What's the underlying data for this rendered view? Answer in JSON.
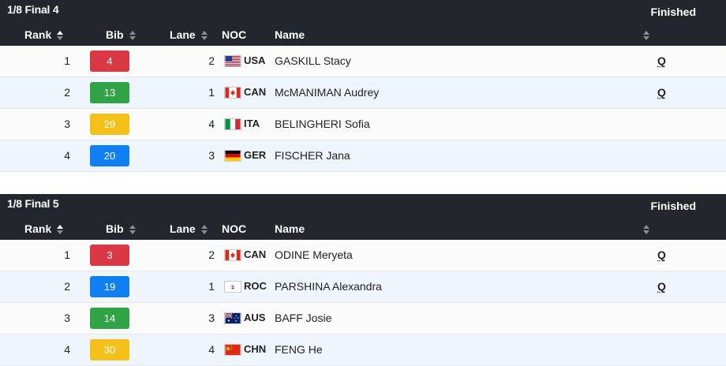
{
  "columns": {
    "rank": "Rank",
    "bib": "Bib",
    "lane": "Lane",
    "noc": "NOC",
    "name": "Name"
  },
  "colors": {
    "red": "#d93844",
    "green": "#2fa345",
    "yellow": "#f5c01a",
    "blue": "#0f7ff1",
    "header": "#24262d"
  },
  "heats": [
    {
      "title": "1/8 Final 4",
      "status": "Finished",
      "rows": [
        {
          "rank": "1",
          "bib": "4",
          "bib_color": "#d93844",
          "lane": "2",
          "flag": "usa-flag-icon",
          "noc": "USA",
          "name": "GASKILL Stacy",
          "q": "Q"
        },
        {
          "rank": "2",
          "bib": "13",
          "bib_color": "#2fa345",
          "lane": "1",
          "flag": "canada-flag-icon",
          "noc": "CAN",
          "name": "McMANIMAN Audrey",
          "q": "Q"
        },
        {
          "rank": "3",
          "bib": "29",
          "bib_color": "#f5c01a",
          "lane": "4",
          "flag": "italy-flag-icon",
          "noc": "ITA",
          "name": "BELINGHERI Sofia",
          "q": ""
        },
        {
          "rank": "4",
          "bib": "20",
          "bib_color": "#0f7ff1",
          "lane": "3",
          "flag": "germany-flag-icon",
          "noc": "GER",
          "name": "FISCHER Jana",
          "q": ""
        }
      ]
    },
    {
      "title": "1/8 Final 5",
      "status": "Finished",
      "rows": [
        {
          "rank": "1",
          "bib": "3",
          "bib_color": "#d93844",
          "lane": "2",
          "flag": "canada-flag-icon",
          "noc": "CAN",
          "name": "ODINE Meryeta",
          "q": "Q"
        },
        {
          "rank": "2",
          "bib": "19",
          "bib_color": "#0f7ff1",
          "lane": "1",
          "flag": "roc-flag-icon",
          "noc": "ROC",
          "name": "PARSHINA Alexandra",
          "q": "Q"
        },
        {
          "rank": "3",
          "bib": "14",
          "bib_color": "#2fa345",
          "lane": "3",
          "flag": "australia-flag-icon",
          "noc": "AUS",
          "name": "BAFF Josie",
          "q": ""
        },
        {
          "rank": "4",
          "bib": "30",
          "bib_color": "#f5c01a",
          "lane": "4",
          "flag": "china-flag-icon",
          "noc": "CHN",
          "name": "FENG He",
          "q": ""
        }
      ]
    }
  ]
}
